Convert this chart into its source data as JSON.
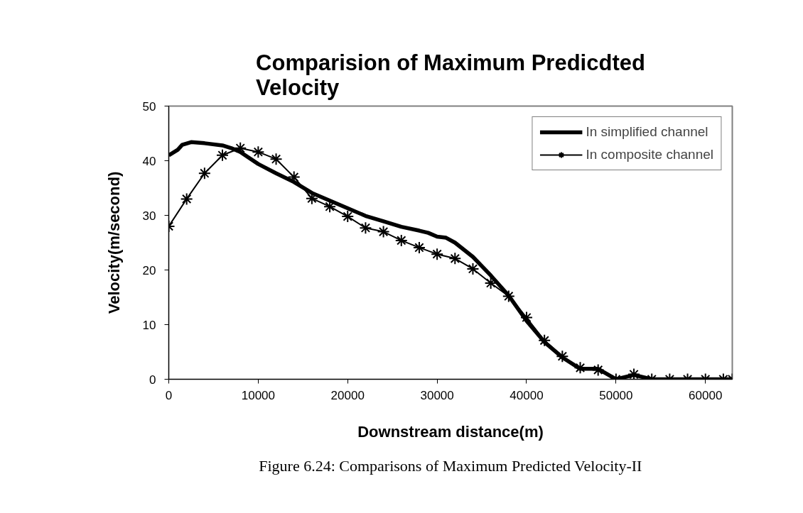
{
  "chart_data": {
    "type": "line",
    "title": "Comparision of Maximum Predicdted Velocity",
    "xlabel": "Downstream distance(m)",
    "ylabel": "Velocity(m/second)",
    "annotations": [
      "Figure 6.24: Comparisons of Maximum Predicted Velocity-II"
    ],
    "xlim": [
      0,
      63000
    ],
    "xticks": [
      0,
      10000,
      20000,
      30000,
      40000,
      50000,
      60000
    ],
    "ylim": [
      0,
      50
    ],
    "yticks": [
      0,
      10,
      20,
      30,
      40,
      50
    ],
    "grid": false,
    "legend": "top right",
    "series": [
      {
        "name": "In simplified channel",
        "color": "#000000",
        "marker": "none",
        "x": [
          0,
          1000,
          1500,
          2500,
          4000,
          6000,
          7000,
          8000,
          10000,
          12000,
          14000,
          16000,
          18000,
          20000,
          22000,
          24000,
          26000,
          28000,
          29000,
          30000,
          31000,
          32000,
          34000,
          36000,
          38000,
          40000,
          42000,
          44000,
          46000,
          48000,
          50000,
          52000,
          54000,
          63000
        ],
        "values": [
          41.0,
          42.0,
          42.9,
          43.4,
          43.2,
          42.8,
          42.3,
          41.6,
          39.4,
          37.7,
          36.1,
          34.1,
          32.7,
          31.3,
          29.9,
          28.9,
          27.9,
          27.2,
          26.8,
          26.1,
          25.9,
          25.0,
          22.4,
          19.0,
          15.3,
          10.7,
          6.8,
          4.0,
          1.9,
          1.9,
          0,
          0.8,
          0,
          0
        ]
      },
      {
        "name": "In composite channel",
        "color": "#000000",
        "marker": "cross",
        "x": [
          0,
          2000,
          4000,
          6000,
          8000,
          10000,
          12000,
          14000,
          16000,
          18000,
          20000,
          22000,
          24000,
          26000,
          28000,
          30000,
          32000,
          34000,
          36000,
          38000,
          40000,
          42000,
          44000,
          46000,
          48000,
          50000,
          52000,
          54000,
          56000,
          58000,
          60000,
          62000,
          63000
        ],
        "values": [
          28.0,
          33.0,
          37.7,
          41.0,
          42.3,
          41.6,
          40.3,
          37.0,
          33.1,
          31.6,
          29.8,
          27.7,
          27.0,
          25.4,
          24.1,
          22.9,
          22.1,
          20.2,
          17.6,
          15.2,
          11.3,
          7.1,
          4.2,
          2.1,
          1.7,
          0,
          0.9,
          0,
          0,
          0,
          0,
          0,
          0
        ]
      }
    ]
  }
}
